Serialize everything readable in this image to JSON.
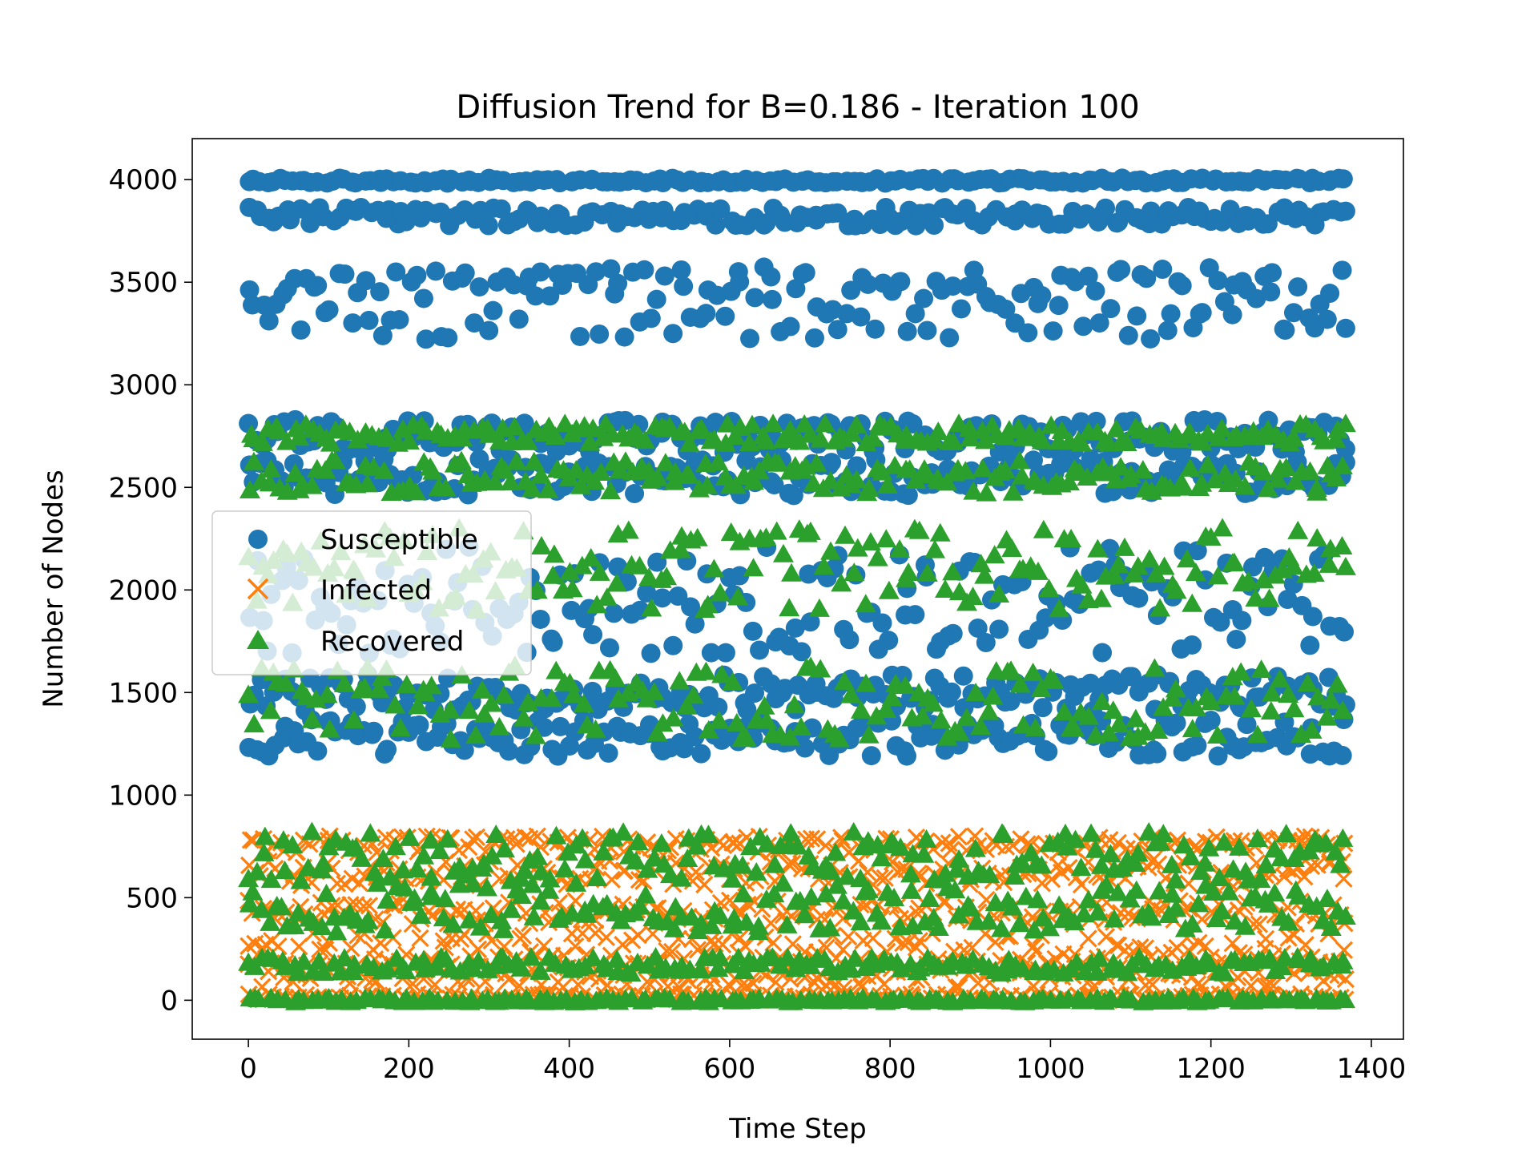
{
  "chart_data": {
    "type": "scatter",
    "title": "Diffusion Trend for B=0.186 - Iteration 100",
    "xlabel": "Time Step",
    "ylabel": "Number of Nodes",
    "xlim": [
      -70,
      1440
    ],
    "ylim": [
      -190,
      4200
    ],
    "xticks": [
      0,
      200,
      400,
      600,
      800,
      1000,
      1200,
      1400
    ],
    "yticks": [
      0,
      500,
      1000,
      1500,
      2000,
      2500,
      3000,
      3500,
      4000
    ],
    "xtick_labels": [
      "0",
      "200",
      "400",
      "600",
      "800",
      "1000",
      "1200",
      "1400"
    ],
    "ytick_labels": [
      "0",
      "500",
      "1000",
      "1500",
      "2000",
      "2500",
      "3000",
      "3500",
      "4000"
    ],
    "grid": false,
    "legend_position": "center-left",
    "x_range": [
      0,
      1368
    ],
    "x_step": 8,
    "series": [
      {
        "name": "Susceptible",
        "marker": "circle",
        "color": "#1f77b4",
        "bands": [
          {
            "center": 3995,
            "jitter": 12
          },
          {
            "center": 3820,
            "jitter": 45
          },
          {
            "center": 3400,
            "jitter": 180
          },
          {
            "center": 2750,
            "jitter": 80
          },
          {
            "center": 2550,
            "jitter": 90
          },
          {
            "center": 1950,
            "jitter": 260
          },
          {
            "center": 1500,
            "jitter": 90
          },
          {
            "center": 1280,
            "jitter": 90
          }
        ]
      },
      {
        "name": "Infected",
        "marker": "x",
        "color": "#ff7f0e",
        "bands": [
          {
            "center": 760,
            "jitter": 40
          },
          {
            "center": 620,
            "jitter": 60
          },
          {
            "center": 430,
            "jitter": 60
          },
          {
            "center": 250,
            "jitter": 80
          },
          {
            "center": 120,
            "jitter": 60
          },
          {
            "center": 15,
            "jitter": 15
          }
        ]
      },
      {
        "name": "Recovered",
        "marker": "triangle",
        "color": "#2ca02c",
        "bands": [
          {
            "center": 2760,
            "jitter": 50
          },
          {
            "center": 2550,
            "jitter": 80
          },
          {
            "center": 2100,
            "jitter": 200
          },
          {
            "center": 1450,
            "jitter": 180
          },
          {
            "center": 700,
            "jitter": 120
          },
          {
            "center": 450,
            "jitter": 120
          },
          {
            "center": 170,
            "jitter": 40
          },
          {
            "center": 0,
            "jitter": 10
          }
        ]
      }
    ]
  }
}
